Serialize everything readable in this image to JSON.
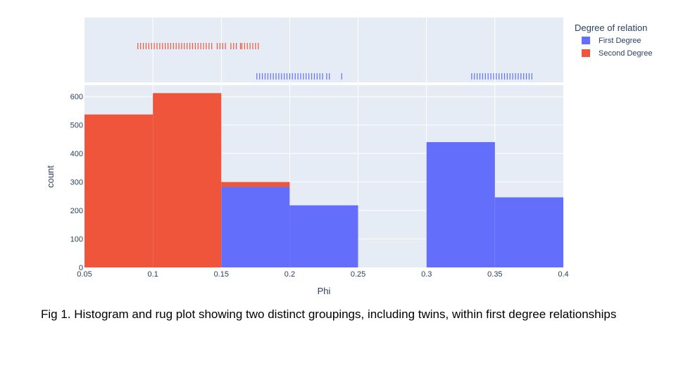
{
  "caption": "Fig 1. Histogram and rug plot showing two distinct groupings, including twins, within first degree relationships",
  "colors": {
    "plot_bg": "#e5ecf6",
    "grid": "#ffffff",
    "first_degree": "#636efa",
    "second_degree": "#ef553b",
    "text": "#2a3f5f"
  },
  "chart_data": {
    "type": "bar",
    "subtype": "stacked histogram with marginal rug plot",
    "xlabel": "Phi",
    "ylabel": "count",
    "xlim": [
      0.05,
      0.4
    ],
    "ylim": [
      0,
      640
    ],
    "grid": true,
    "x_ticks": [
      "0.05",
      "0.1",
      "0.15",
      "0.2",
      "0.25",
      "0.3",
      "0.35",
      "0.4"
    ],
    "y_ticks": [
      "0",
      "100",
      "200",
      "300",
      "400",
      "500",
      "600"
    ],
    "bins": [
      [
        0.05,
        0.1
      ],
      [
        0.1,
        0.15
      ],
      [
        0.15,
        0.2
      ],
      [
        0.2,
        0.25
      ],
      [
        0.25,
        0.3
      ],
      [
        0.3,
        0.35
      ],
      [
        0.35,
        0.4
      ]
    ],
    "legend": {
      "title": "Degree of relation",
      "placement": "top-right"
    },
    "series": [
      {
        "name": "First Degree",
        "color": "#636efa",
        "values": [
          0,
          0,
          283,
          218,
          0,
          440,
          246
        ],
        "rug": [
          0.176,
          0.178,
          0.18,
          0.182,
          0.184,
          0.186,
          0.188,
          0.19,
          0.192,
          0.194,
          0.196,
          0.198,
          0.2,
          0.202,
          0.204,
          0.206,
          0.208,
          0.21,
          0.212,
          0.214,
          0.216,
          0.218,
          0.22,
          0.222,
          0.224,
          0.227,
          0.229,
          0.238,
          0.333,
          0.335,
          0.337,
          0.339,
          0.341,
          0.343,
          0.345,
          0.347,
          0.349,
          0.351,
          0.353,
          0.355,
          0.357,
          0.359,
          0.361,
          0.363,
          0.365,
          0.367,
          0.369,
          0.371,
          0.373,
          0.375,
          0.377
        ]
      },
      {
        "name": "Second Degree",
        "color": "#ef553b",
        "values": [
          537,
          612,
          17,
          0,
          0,
          0,
          0
        ],
        "rug": [
          0.089,
          0.091,
          0.093,
          0.095,
          0.097,
          0.099,
          0.101,
          0.103,
          0.105,
          0.107,
          0.109,
          0.111,
          0.113,
          0.115,
          0.117,
          0.119,
          0.121,
          0.123,
          0.125,
          0.127,
          0.129,
          0.131,
          0.133,
          0.135,
          0.137,
          0.139,
          0.141,
          0.143,
          0.147,
          0.149,
          0.151,
          0.153,
          0.157,
          0.159,
          0.161,
          0.164,
          0.165,
          0.167,
          0.169,
          0.171,
          0.173,
          0.175,
          0.177
        ]
      }
    ]
  }
}
